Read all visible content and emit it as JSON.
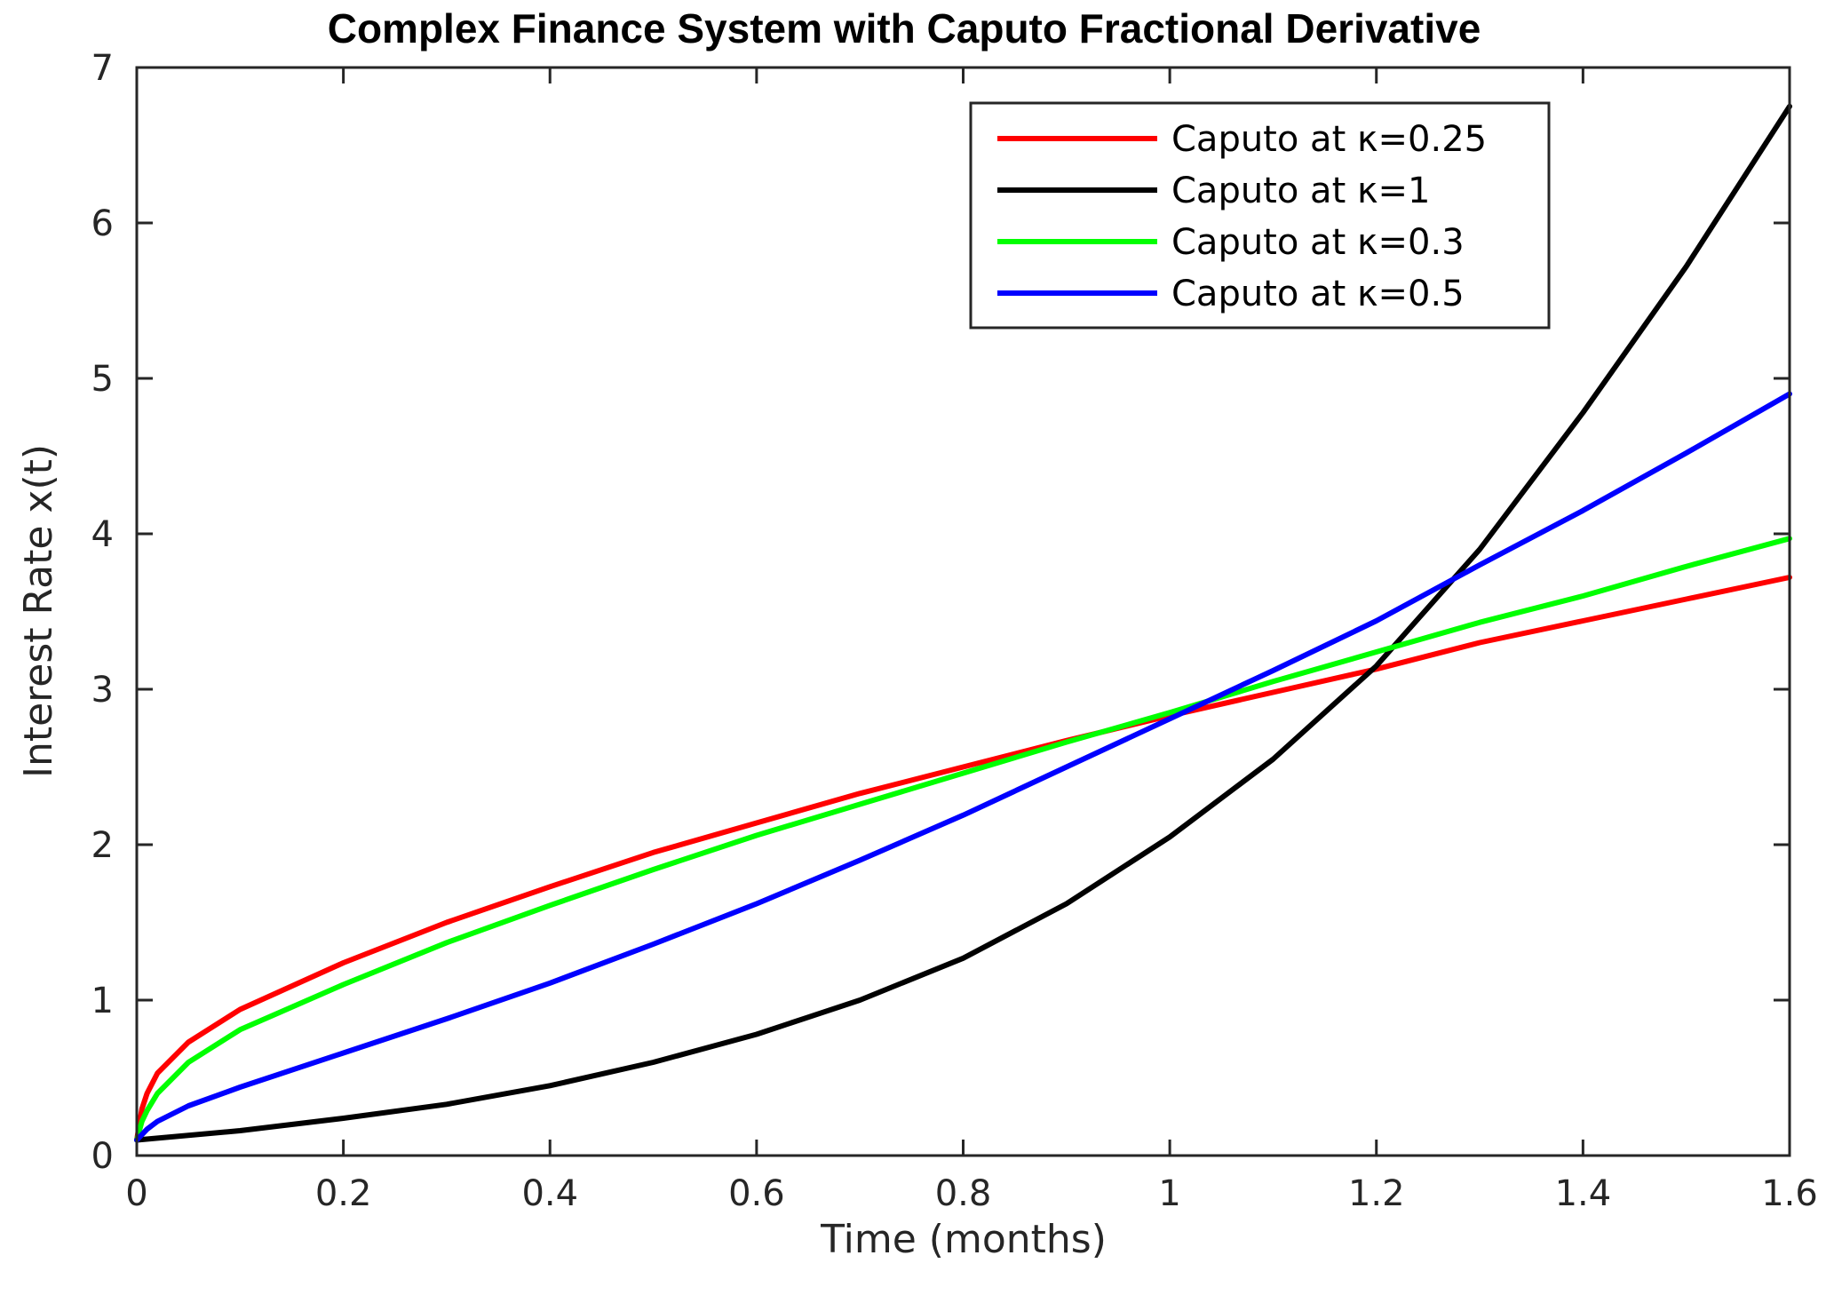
{
  "chart_data": {
    "type": "line",
    "title": "Complex Finance System with Caputo Fractional Derivative",
    "xlabel": "Time (months)",
    "ylabel": "Interest Rate x(t)",
    "xlim": [
      0,
      1.6
    ],
    "ylim": [
      0,
      7
    ],
    "xticks": [
      0,
      0.2,
      0.4,
      0.6,
      0.8,
      1,
      1.2,
      1.4,
      1.6
    ],
    "xtick_labels": [
      "0",
      "0.2",
      "0.4",
      "0.6",
      "0.8",
      "1",
      "1.2",
      "1.4",
      "1.6"
    ],
    "yticks": [
      0,
      1,
      2,
      3,
      4,
      5,
      6,
      7
    ],
    "ytick_labels": [
      "0",
      "1",
      "2",
      "3",
      "4",
      "5",
      "6",
      "7"
    ],
    "grid": false,
    "legend_position": "top-right",
    "series": [
      {
        "name": "Caputo at κ=0.25",
        "color": "#ff0000",
        "x": [
          0,
          0.005,
          0.01,
          0.02,
          0.05,
          0.1,
          0.2,
          0.3,
          0.4,
          0.5,
          0.6,
          0.7,
          0.8,
          0.9,
          1.0,
          1.1,
          1.2,
          1.3,
          1.4,
          1.5,
          1.6
        ],
        "y": [
          0.1,
          0.3,
          0.4,
          0.53,
          0.73,
          0.94,
          1.24,
          1.5,
          1.73,
          1.95,
          2.14,
          2.33,
          2.5,
          2.67,
          2.83,
          2.98,
          3.13,
          3.3,
          3.44,
          3.58,
          3.72
        ]
      },
      {
        "name": "Caputo at κ=1",
        "color": "#000000",
        "x": [
          0,
          0.1,
          0.2,
          0.3,
          0.4,
          0.5,
          0.6,
          0.7,
          0.8,
          0.9,
          1.0,
          1.1,
          1.2,
          1.3,
          1.4,
          1.5,
          1.6
        ],
        "y": [
          0.1,
          0.16,
          0.24,
          0.33,
          0.45,
          0.6,
          0.78,
          1.0,
          1.27,
          1.62,
          2.05,
          2.55,
          3.15,
          3.9,
          4.78,
          5.72,
          6.75
        ]
      },
      {
        "name": "Caputo at κ=0.3",
        "color": "#00ff00",
        "x": [
          0,
          0.005,
          0.01,
          0.02,
          0.05,
          0.1,
          0.2,
          0.3,
          0.4,
          0.5,
          0.6,
          0.7,
          0.8,
          0.9,
          1.0,
          1.1,
          1.2,
          1.3,
          1.4,
          1.5,
          1.6
        ],
        "y": [
          0.1,
          0.22,
          0.29,
          0.4,
          0.6,
          0.81,
          1.1,
          1.37,
          1.61,
          1.84,
          2.06,
          2.26,
          2.46,
          2.66,
          2.85,
          3.05,
          3.24,
          3.43,
          3.6,
          3.79,
          3.97
        ]
      },
      {
        "name": "Caputo at κ=0.5",
        "color": "#0000ff",
        "x": [
          0,
          0.01,
          0.02,
          0.05,
          0.1,
          0.2,
          0.3,
          0.4,
          0.5,
          0.6,
          0.7,
          0.8,
          0.9,
          1.0,
          1.1,
          1.2,
          1.3,
          1.4,
          1.5,
          1.6
        ],
        "y": [
          0.1,
          0.17,
          0.22,
          0.32,
          0.44,
          0.66,
          0.88,
          1.11,
          1.36,
          1.62,
          1.9,
          2.19,
          2.5,
          2.81,
          3.12,
          3.44,
          3.8,
          4.15,
          4.52,
          4.9
        ]
      }
    ]
  }
}
